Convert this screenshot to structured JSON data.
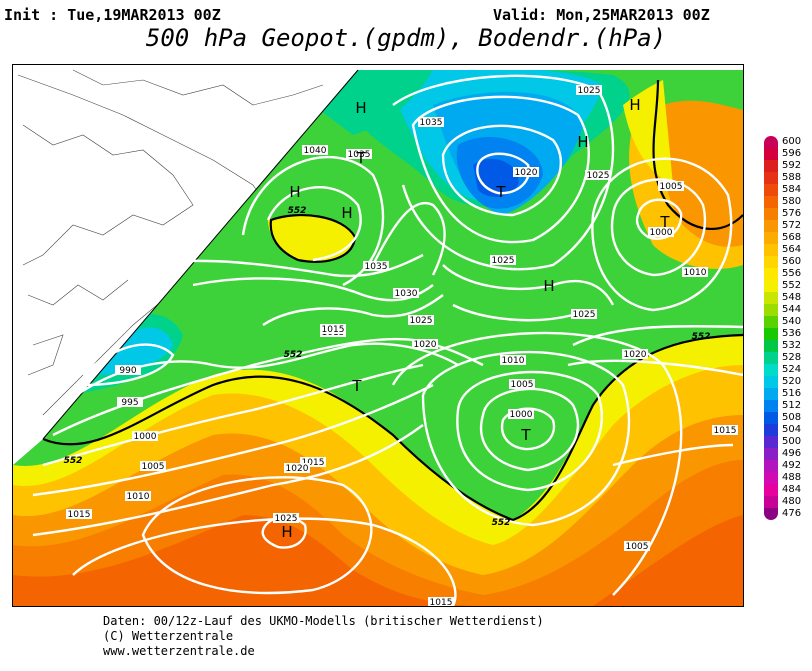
{
  "header": {
    "init": "Init : Tue,19MAR2013 00Z",
    "valid": "Valid: Mon,25MAR2013 00Z",
    "title": "500 hPa Geopot.(gpdm), Bodendr.(hPa)"
  },
  "colorbar": {
    "levels": [
      "600",
      "596",
      "592",
      "588",
      "584",
      "580",
      "576",
      "572",
      "568",
      "564",
      "560",
      "556",
      "552",
      "548",
      "544",
      "540",
      "536",
      "532",
      "528",
      "524",
      "520",
      "516",
      "512",
      "508",
      "504",
      "500",
      "496",
      "492",
      "488",
      "484",
      "480",
      "476"
    ],
    "colors": [
      "#c8005a",
      "#d4003c",
      "#dc1e1e",
      "#e63214",
      "#ee4a0a",
      "#f46400",
      "#f87e00",
      "#fa9600",
      "#fcac00",
      "#fec200",
      "#ffd600",
      "#ffe800",
      "#f4f000",
      "#c8e600",
      "#9cdc00",
      "#5ad200",
      "#18c800",
      "#00c846",
      "#00d28c",
      "#00dcc8",
      "#00c8e6",
      "#00aaf0",
      "#0082f0",
      "#005ae6",
      "#1e3cdc",
      "#5a28d2",
      "#8c1ec8",
      "#b414be",
      "#d20ab4",
      "#e600a0",
      "#c80096",
      "#8c0082"
    ]
  },
  "pressure_labels": [
    {
      "text": "1025"
    },
    {
      "text": "1035"
    },
    {
      "text": "1040"
    },
    {
      "text": "1035"
    },
    {
      "text": "1020"
    },
    {
      "text": "1025"
    },
    {
      "text": "1035"
    },
    {
      "text": "1030"
    },
    {
      "text": "1025"
    },
    {
      "text": "1020"
    },
    {
      "text": "1015"
    },
    {
      "text": "1005"
    },
    {
      "text": "1000"
    },
    {
      "text": "1010"
    },
    {
      "text": "1025"
    },
    {
      "text": "1025"
    },
    {
      "text": "1015"
    },
    {
      "text": "1010"
    },
    {
      "text": "1005"
    },
    {
      "text": "1000"
    },
    {
      "text": "1020"
    },
    {
      "text": "1015"
    },
    {
      "text": "990"
    },
    {
      "text": "995"
    },
    {
      "text": "1000"
    },
    {
      "text": "1005"
    },
    {
      "text": "1010"
    },
    {
      "text": "1015"
    },
    {
      "text": "1015"
    },
    {
      "text": "1020"
    },
    {
      "text": "1025"
    },
    {
      "text": "1005"
    },
    {
      "text": "1015"
    }
  ],
  "geopot_labels": [
    {
      "text": "552"
    },
    {
      "text": "552"
    },
    {
      "text": "552"
    },
    {
      "text": "552"
    },
    {
      "text": "552"
    }
  ],
  "centers": [
    {
      "text": "H"
    },
    {
      "text": "H"
    },
    {
      "text": "H"
    },
    {
      "text": "H"
    },
    {
      "text": "T"
    },
    {
      "text": "H"
    },
    {
      "text": "T"
    },
    {
      "text": "H"
    },
    {
      "text": "T"
    },
    {
      "text": "T"
    },
    {
      "text": "T"
    },
    {
      "text": "H"
    }
  ],
  "footer": {
    "line1": "Daten: 00/12z-Lauf des UKMO-Modells (britischer Wetterdienst)",
    "line2": "(C) Wetterzentrale",
    "line3": "www.wetterzentrale.de"
  }
}
